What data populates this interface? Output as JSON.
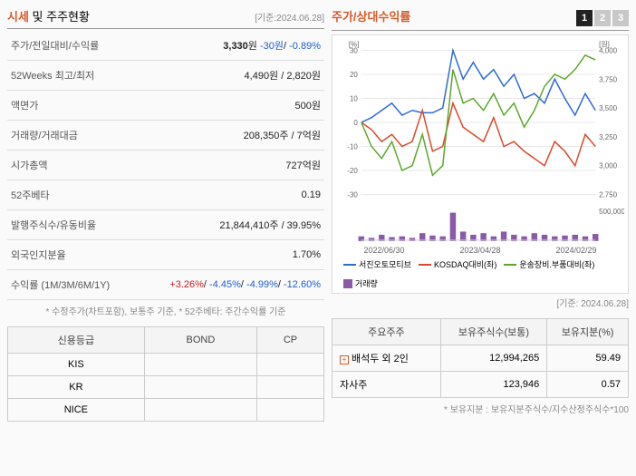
{
  "header": {
    "title_prefix": "시세",
    "title_rest": " 및 주주현황",
    "date_prefix": "[기준:",
    "date": "2024.06.28",
    "date_suffix": "]"
  },
  "info_rows": [
    {
      "label": "주가/전일대비/수익률",
      "html": "<b>3,330</b>원 <span class='val-blue'>-30원</span>/ <span class='val-blue'>-0.89%</span>"
    },
    {
      "label": "52Weeks 최고/최저",
      "value": "4,490원 / 2,820원"
    },
    {
      "label": "액면가",
      "value": "500원"
    },
    {
      "label": "거래량/거래대금",
      "value": "208,350주 / 7억원"
    },
    {
      "label": "시가총액",
      "value": "727억원"
    },
    {
      "label": "52주베타",
      "value": "0.19"
    },
    {
      "label": "발행주식수/유동비율",
      "value": "21,844,410주 / 39.95%"
    },
    {
      "label": "외국인지분율",
      "value": "1.70%"
    },
    {
      "label": "수익률 (1M/3M/6M/1Y)",
      "html": "<span class='val-red'>+3.26%</span>/ <span class='val-blue'>-4.45%</span>/ <span class='val-blue'>-4.99%</span>/ <span class='val-blue'>-12.60%</span>"
    }
  ],
  "footnote1": "* 수정주가(차트포함), 보통주 기준, * 52주베타: 주간수익률 기준",
  "chart": {
    "title": "주가/상대수익률",
    "tabs": [
      "1",
      "2",
      "3"
    ],
    "active_tab": 0,
    "y_left_label": "[%]",
    "y_right_label": "[원]",
    "y_left_ticks": [
      30,
      20,
      10,
      0,
      -10,
      -20,
      -30
    ],
    "y_right_ticks": [
      4000,
      3750,
      3500,
      3250,
      3000,
      2750
    ],
    "y_vol_tick": "500,000",
    "x_labels": [
      "2022/06/30",
      "2023/04/28",
      "2024/02/29"
    ],
    "series": [
      {
        "name": "서진오토모티브",
        "color": "#2d6bd8",
        "data": [
          0,
          2,
          5,
          8,
          3,
          5,
          4,
          4,
          6,
          30,
          18,
          25,
          18,
          22,
          15,
          20,
          10,
          12,
          8,
          18,
          10,
          3,
          12,
          5
        ]
      },
      {
        "name": "KOSDAQ대비(좌)",
        "color": "#d84a2a",
        "data": [
          0,
          -3,
          -8,
          -5,
          -10,
          -8,
          5,
          -12,
          -10,
          8,
          -2,
          -5,
          -8,
          2,
          -10,
          -8,
          -12,
          -15,
          -18,
          -8,
          -12,
          -18,
          -5,
          -10
        ]
      },
      {
        "name": "운송장비.부품대비(좌)",
        "color": "#5aa82a",
        "data": [
          0,
          -10,
          -15,
          -8,
          -20,
          -18,
          -5,
          -22,
          -18,
          22,
          8,
          10,
          5,
          12,
          3,
          8,
          -2,
          5,
          15,
          20,
          18,
          22,
          28,
          26
        ]
      }
    ],
    "volume": {
      "name": "거래량",
      "color": "#8a5aa8",
      "data": [
        30,
        20,
        40,
        25,
        30,
        20,
        50,
        35,
        30,
        180,
        60,
        40,
        50,
        30,
        60,
        40,
        30,
        50,
        40,
        30,
        35,
        40,
        30,
        45
      ]
    },
    "background": "#ffffff",
    "grid_color": "#e8e8e8"
  },
  "rating_date": "[기준: 2024.06.28]",
  "rating_table": {
    "headers": [
      "신용등급",
      "BOND",
      "CP"
    ],
    "rows": [
      [
        "KIS",
        "",
        ""
      ],
      [
        "KR",
        "",
        ""
      ],
      [
        "NICE",
        "",
        ""
      ]
    ]
  },
  "shareholder_table": {
    "headers": [
      "주요주주",
      "보유주식수(보통)",
      "보유지분(%)"
    ],
    "rows": [
      {
        "name": "배석두 외 2인",
        "expandable": true,
        "shares": "12,994,265",
        "pct": "59.49"
      },
      {
        "name": "자사주",
        "expandable": false,
        "shares": "123,946",
        "pct": "0.57"
      }
    ]
  },
  "footnote2": "* 보유지분 : 보유지분주식수/지수산정주식수*100"
}
